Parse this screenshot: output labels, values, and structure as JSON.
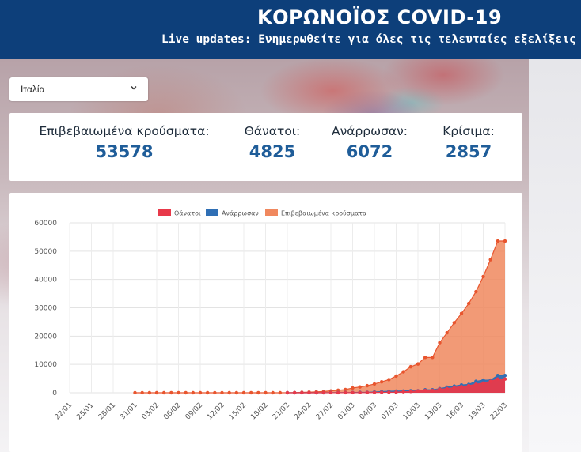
{
  "header": {
    "title": "ΚΟΡΩΝΟΪΟΣ COVID-19",
    "subtitle": "Live updates: Ενημερωθείτε για όλες τις τελευταίες εξελίξεις"
  },
  "country_selector": {
    "selected": "Ιταλία",
    "icon": "chevron-down-icon"
  },
  "stats": [
    {
      "label": "Επιβεβαιωμένα κρούσματα:",
      "value": "53578"
    },
    {
      "label": "Θάνατοι:",
      "value": "4825"
    },
    {
      "label": "Ανάρρωσαν:",
      "value": "6072"
    },
    {
      "label": "Κρίσιμα:",
      "value": "2857"
    }
  ],
  "colors": {
    "header_bg": "#0d3f7a",
    "deaths": "#e8394a",
    "recovered": "#2f6fb5",
    "confirmed": "#f0885e",
    "confirmed_points": "#e8552e",
    "stat_number": "#1f5d99"
  },
  "chart_data": {
    "type": "area",
    "title": "",
    "xlabel": "",
    "ylabel": "",
    "ylim": [
      0,
      60000
    ],
    "yticks": [
      0,
      10000,
      20000,
      30000,
      40000,
      50000,
      60000
    ],
    "x": [
      "22/01",
      "23/01",
      "24/01",
      "25/01",
      "26/01",
      "27/01",
      "28/01",
      "29/01",
      "30/01",
      "31/01",
      "01/02",
      "02/02",
      "03/02",
      "04/02",
      "05/02",
      "06/02",
      "07/02",
      "08/02",
      "09/02",
      "10/02",
      "11/02",
      "12/02",
      "13/02",
      "14/02",
      "15/02",
      "16/02",
      "17/02",
      "18/02",
      "19/02",
      "20/02",
      "21/02",
      "22/02",
      "23/02",
      "24/02",
      "25/02",
      "26/02",
      "27/02",
      "28/02",
      "29/02",
      "01/03",
      "02/03",
      "03/03",
      "04/03",
      "05/03",
      "06/03",
      "07/03",
      "08/03",
      "09/03",
      "10/03",
      "11/03",
      "12/03",
      "13/03",
      "14/03",
      "15/03",
      "16/03",
      "17/03",
      "18/03",
      "19/03",
      "20/03",
      "21/03",
      "22/03"
    ],
    "x_tick_labels": [
      "22/01",
      "25/01",
      "28/01",
      "31/01",
      "03/02",
      "06/02",
      "09/02",
      "12/02",
      "15/02",
      "18/02",
      "21/02",
      "24/02",
      "27/02",
      "01/03",
      "04/03",
      "07/03",
      "10/03",
      "13/03",
      "16/03",
      "19/03",
      "22/03"
    ],
    "legend_position": "top",
    "grid": true,
    "series": [
      {
        "name": "Θάνατοι",
        "values": [
          0,
          0,
          0,
          0,
          0,
          0,
          0,
          0,
          0,
          0,
          0,
          0,
          0,
          0,
          0,
          0,
          0,
          0,
          0,
          0,
          0,
          0,
          0,
          0,
          0,
          0,
          0,
          0,
          0,
          0,
          1,
          2,
          3,
          7,
          10,
          12,
          17,
          21,
          29,
          34,
          52,
          79,
          107,
          148,
          197,
          233,
          366,
          463,
          631,
          827,
          827,
          1266,
          1441,
          1809,
          2158,
          2503,
          2978,
          3405,
          4032,
          4825,
          4825
        ]
      },
      {
        "name": "Ανάρρωσαν",
        "values": [
          0,
          0,
          0,
          0,
          0,
          0,
          0,
          0,
          0,
          0,
          0,
          0,
          0,
          0,
          0,
          0,
          0,
          0,
          0,
          0,
          0,
          0,
          0,
          0,
          0,
          0,
          0,
          0,
          0,
          0,
          0,
          1,
          2,
          1,
          1,
          3,
          45,
          46,
          46,
          83,
          149,
          160,
          276,
          414,
          523,
          589,
          622,
          724,
          724,
          1045,
          1045,
          1439,
          1966,
          2335,
          2749,
          2941,
          4025,
          4440,
          4440,
          6072,
          6072
        ]
      },
      {
        "name": "Επιβεβαιωμένα κρούσματα",
        "values": [
          0,
          0,
          0,
          0,
          0,
          0,
          0,
          0,
          0,
          2,
          2,
          2,
          2,
          2,
          2,
          2,
          3,
          3,
          3,
          3,
          3,
          3,
          3,
          3,
          3,
          3,
          3,
          3,
          3,
          3,
          20,
          62,
          155,
          229,
          322,
          453,
          655,
          888,
          1128,
          1694,
          2036,
          2502,
          3089,
          3858,
          4636,
          5883,
          7375,
          9172,
          10149,
          12462,
          12462,
          17660,
          21157,
          24747,
          27980,
          31506,
          35713,
          41035,
          47021,
          53578,
          53578
        ]
      }
    ]
  }
}
